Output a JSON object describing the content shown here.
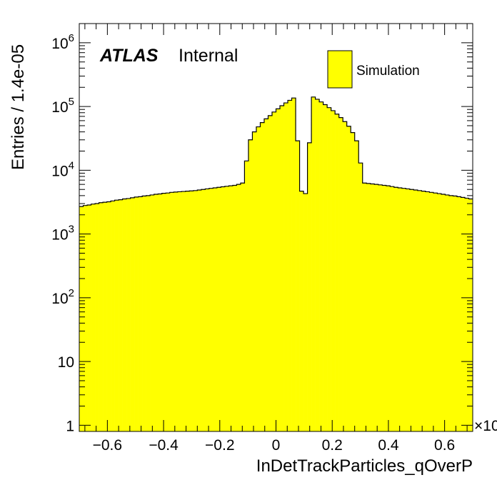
{
  "chart_data": {
    "type": "bar",
    "style": "histogram-step-filled",
    "xlabel": "InDetTrackParticles_qOverP",
    "ylabel": "Entries / 1.4e-05",
    "x_multiplier_label": "×10",
    "xlim": [
      -0.7,
      0.7
    ],
    "ylim": [
      0.8,
      2000000
    ],
    "y_scale": "log",
    "bin_width": 0.014,
    "fill_color": "#ffff00",
    "line_color": "#000000",
    "x_ticks": [
      {
        "value": -0.6,
        "label": "−0.6"
      },
      {
        "value": -0.4,
        "label": "−0.4"
      },
      {
        "value": -0.2,
        "label": "−0.2"
      },
      {
        "value": 0,
        "label": "0"
      },
      {
        "value": 0.2,
        "label": "0.2"
      },
      {
        "value": 0.4,
        "label": "0.4"
      },
      {
        "value": 0.6,
        "label": "0.6"
      }
    ],
    "y_ticks": [
      {
        "value": 1,
        "base": "1",
        "exp": ""
      },
      {
        "value": 10,
        "base": "10",
        "exp": ""
      },
      {
        "value": 100,
        "base": "10",
        "exp": "2"
      },
      {
        "value": 1000,
        "base": "10",
        "exp": "3"
      },
      {
        "value": 10000,
        "base": "10",
        "exp": "4"
      },
      {
        "value": 100000,
        "base": "10",
        "exp": "5"
      },
      {
        "value": 1000000,
        "base": "10",
        "exp": "6"
      }
    ],
    "annotations": {
      "atlas": "ATLAS",
      "status": "Internal"
    },
    "legend": {
      "entries": [
        {
          "name": "Simulation",
          "color": "#ffff00"
        }
      ],
      "placement": "top-right"
    },
    "values": [
      2700,
      2800,
      2850,
      2950,
      3000,
      3100,
      3150,
      3200,
      3300,
      3400,
      3450,
      3550,
      3600,
      3700,
      3800,
      3850,
      3950,
      4000,
      4100,
      4200,
      4250,
      4350,
      4400,
      4500,
      4550,
      4600,
      4650,
      4700,
      4750,
      4800,
      4900,
      5000,
      5100,
      5200,
      5300,
      5400,
      5500,
      5600,
      5700,
      5800,
      6000,
      6300,
      14000,
      30000,
      40000,
      48000,
      56000,
      64000,
      72000,
      82000,
      92000,
      103000,
      114000,
      125000,
      136000,
      29000,
      4700,
      4300,
      27000,
      141000,
      130000,
      118000,
      107000,
      96000,
      86000,
      76000,
      67000,
      58000,
      49000,
      39000,
      29000,
      13000,
      6300,
      6200,
      6100,
      6000,
      5900,
      5800,
      5700,
      5550,
      5400,
      5300,
      5200,
      5100,
      5000,
      4900,
      4800,
      4700,
      4600,
      4500,
      4400,
      4300,
      4200,
      4100,
      4000,
      3950,
      3850,
      3750,
      3650,
      3550
    ]
  }
}
